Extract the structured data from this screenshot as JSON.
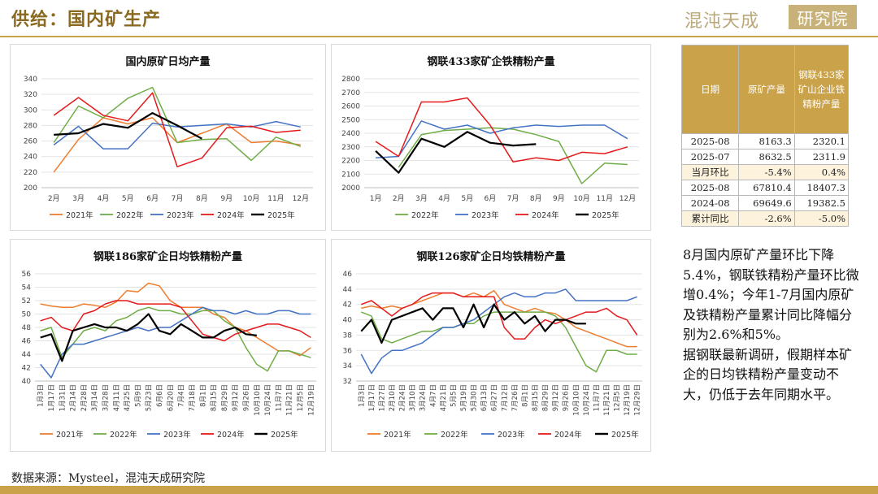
{
  "header": {
    "title": "供给：国内矿生产",
    "logo_text": "混沌天成",
    "logo_badge": "研究院"
  },
  "colors": {
    "2021": "#ed7d31",
    "2022": "#70ad47",
    "2023": "#4472c4",
    "2024": "#e41a1c",
    "2025": "#000000",
    "accent": "#c9a24a"
  },
  "legend_labels": [
    "2021年",
    "2022年",
    "2023年",
    "2024年",
    "2025年"
  ],
  "chart_data": [
    {
      "type": "line",
      "title": "国内原矿日均产量",
      "categories": [
        "2月",
        "3月",
        "4月",
        "5月",
        "6月",
        "7月",
        "8月",
        "9月",
        "10月",
        "11月",
        "12月"
      ],
      "ylim": [
        200,
        340
      ],
      "yticks": [
        200,
        220,
        240,
        260,
        280,
        300,
        320,
        340
      ],
      "series": [
        {
          "name": "2021年",
          "values": [
            220,
            262,
            290,
            282,
            290,
            258,
            270,
            282,
            258,
            260,
            255
          ]
        },
        {
          "name": "2022年",
          "values": [
            258,
            305,
            290,
            315,
            329,
            258,
            262,
            263,
            235,
            265,
            253
          ]
        },
        {
          "name": "2023年",
          "values": [
            255,
            279,
            250,
            250,
            283,
            278,
            280,
            282,
            278,
            285,
            278
          ]
        },
        {
          "name": "2024年",
          "values": [
            293,
            316,
            293,
            286,
            322,
            227,
            238,
            277,
            279,
            271,
            274
          ]
        },
        {
          "name": "2025年",
          "values": [
            268,
            270,
            282,
            277,
            296,
            280,
            263,
            null,
            null,
            null,
            null
          ]
        }
      ]
    },
    {
      "type": "line",
      "title": "钢联433家矿企铁精粉产量",
      "categories": [
        "1月",
        "2月",
        "3月",
        "4月",
        "5月",
        "6月",
        "7月",
        "8月",
        "9月",
        "10月",
        "11月",
        "12月"
      ],
      "ylim": [
        2000,
        2800
      ],
      "yticks": [
        2000,
        2100,
        2200,
        2300,
        2400,
        2500,
        2600,
        2700,
        2800
      ],
      "series": [
        {
          "name": "2022年",
          "values": [
            null,
            2150,
            2390,
            2420,
            2430,
            2440,
            2430,
            2390,
            2340,
            2030,
            2180,
            2170
          ]
        },
        {
          "name": "2023年",
          "values": [
            2220,
            2230,
            2490,
            2430,
            2460,
            2400,
            2440,
            2460,
            2450,
            2460,
            2460,
            2360
          ]
        },
        {
          "name": "2024年",
          "values": [
            2340,
            2230,
            2630,
            2630,
            2660,
            2460,
            2190,
            2220,
            2200,
            2260,
            2250,
            2300
          ]
        },
        {
          "name": "2025年",
          "values": [
            2270,
            2110,
            2360,
            2300,
            2410,
            2330,
            2310,
            2320,
            null,
            null,
            null,
            null
          ]
        }
      ]
    },
    {
      "type": "line",
      "title": "钢联186家矿企日均铁精粉产量",
      "categories": [
        "1月3日",
        "1月17日",
        "1月31日",
        "2月14日",
        "2月28日",
        "3月14日",
        "3月28日",
        "4月11日",
        "4月25日",
        "5月9日",
        "5月23日",
        "6月6日",
        "6月20日",
        "7月4日",
        "7月18日",
        "8月1日",
        "8月15日",
        "8月29日",
        "9月12日",
        "9月26日",
        "10月10日",
        "10月24日",
        "11月7日",
        "11月21日",
        "12月5日",
        "12月19日"
      ],
      "ylim": [
        40,
        56
      ],
      "yticks": [
        40,
        42,
        44,
        46,
        48,
        50,
        52,
        54,
        56
      ],
      "series": [
        {
          "name": "2021年",
          "values": [
            51.5,
            51.2,
            51.0,
            51.0,
            51.5,
            51.3,
            51.0,
            51.8,
            53.5,
            53.3,
            54.6,
            54.2,
            52.0,
            51.0,
            51.0,
            51.0,
            50.0,
            49.5,
            48.0,
            47.5,
            46.5,
            45.5,
            44.5,
            44.5,
            43.8,
            45.0
          ]
        },
        {
          "name": "2022年",
          "values": [
            47.5,
            48.0,
            43.5,
            45.5,
            47.5,
            48.0,
            47.5,
            49.0,
            49.5,
            50.5,
            51.0,
            50.5,
            50.5,
            50.0,
            50.0,
            50.5,
            50.5,
            49.0,
            48.0,
            45.0,
            42.5,
            41.5,
            44.5,
            44.5,
            44.0,
            43.5
          ]
        },
        {
          "name": "2023年",
          "values": [
            42.5,
            40.5,
            44.0,
            45.5,
            45.5,
            46.0,
            46.5,
            47.0,
            47.5,
            48.0,
            47.5,
            48.0,
            48.0,
            49.0,
            50.0,
            51.0,
            50.5,
            50.5,
            50.0,
            50.5,
            50.0,
            50.0,
            50.5,
            50.5,
            50.0,
            50.0
          ]
        },
        {
          "name": "2024年",
          "values": [
            49.0,
            49.5,
            48.0,
            47.5,
            50.0,
            50.5,
            51.5,
            52.0,
            52.0,
            51.5,
            51.5,
            51.5,
            51.5,
            51.0,
            49.0,
            47.0,
            46.5,
            46.0,
            47.0,
            47.5,
            48.0,
            48.5,
            48.5,
            48.0,
            47.5,
            46.5
          ]
        },
        {
          "name": "2025年",
          "values": [
            46.5,
            47.0,
            43.0,
            47.5,
            48.0,
            48.5,
            48.0,
            48.0,
            47.5,
            48.5,
            50.0,
            47.5,
            47.0,
            48.5,
            47.5,
            46.5,
            46.5,
            47.5,
            48.0,
            47.0,
            46.8,
            null,
            null,
            null,
            null,
            null
          ]
        }
      ]
    },
    {
      "type": "line",
      "title": "钢联126家矿企日均铁精粉产量",
      "categories": [
        "1月3日",
        "1月17日",
        "1月27日",
        "2月10日",
        "2月24日",
        "3月10日",
        "3月24日",
        "4月7日",
        "4月21日",
        "5月5日",
        "5月19日",
        "5月30日",
        "6月13日",
        "6月27日",
        "7月12日",
        "7月26日",
        "8月1日",
        "8月15日",
        "8月29日",
        "9月12日",
        "9月26日",
        "10月10日",
        "10月24日",
        "11月7日",
        "11月21日",
        "12月5日",
        "12月19日",
        "12月29日"
      ],
      "ylim": [
        32,
        46
      ],
      "yticks": [
        32,
        34,
        36,
        38,
        40,
        42,
        44,
        46
      ],
      "series": [
        {
          "name": "2021年",
          "values": [
            41.5,
            41.8,
            41.5,
            41.8,
            41.5,
            42.0,
            42.5,
            43.0,
            43.5,
            43.5,
            43.0,
            43.5,
            43.0,
            43.8,
            42.0,
            41.5,
            41.0,
            41.5,
            41.0,
            40.8,
            40.0,
            39.0,
            38.5,
            38.0,
            37.5,
            37.0,
            36.5,
            36.5
          ]
        },
        {
          "name": "2022年",
          "values": [
            41.0,
            40.5,
            37.5,
            37.0,
            37.5,
            38.0,
            38.5,
            38.5,
            39.0,
            39.0,
            39.5,
            39.5,
            40.5,
            41.0,
            41.0,
            41.0,
            41.0,
            41.0,
            41.0,
            40.5,
            39.0,
            36.5,
            34.0,
            33.2,
            36.0,
            36.0,
            35.5,
            35.5
          ]
        },
        {
          "name": "2023年",
          "values": [
            35.5,
            33.0,
            35.0,
            36.0,
            36.0,
            36.5,
            37.0,
            38.0,
            39.0,
            39.0,
            39.5,
            40.0,
            41.0,
            42.0,
            43.0,
            43.5,
            43.0,
            43.0,
            43.5,
            43.5,
            44.0,
            42.5,
            42.5,
            42.5,
            42.5,
            42.5,
            42.5,
            43.0
          ]
        },
        {
          "name": "2024年",
          "values": [
            42.0,
            42.5,
            41.5,
            40.5,
            41.5,
            42.0,
            43.0,
            43.5,
            43.5,
            43.5,
            43.0,
            43.0,
            43.0,
            43.0,
            39.0,
            37.5,
            37.5,
            39.0,
            40.0,
            39.5,
            40.0,
            40.5,
            41.0,
            41.0,
            41.5,
            40.5,
            40.0,
            38.0
          ]
        },
        {
          "name": "2025年",
          "values": [
            38.5,
            40.0,
            37.0,
            40.0,
            40.5,
            41.0,
            41.5,
            40.0,
            41.5,
            41.5,
            39.0,
            42.0,
            39.0,
            42.0,
            40.0,
            41.0,
            39.5,
            40.5,
            38.5,
            40.0,
            40.0,
            39.5,
            39.5,
            null,
            null,
            null,
            null,
            null
          ]
        }
      ]
    }
  ],
  "table": {
    "headers": [
      "日期",
      "原矿产量",
      "钢联433家矿山企业铁精粉产量"
    ],
    "rows": [
      [
        "2025-08",
        "8163.3",
        "2320.1"
      ],
      [
        "2025-07",
        "8632.5",
        "2311.9"
      ],
      [
        "当月环比",
        "-5.4%",
        "0.4%"
      ],
      [
        "2025-08",
        "67810.4",
        "18407.3"
      ],
      [
        "2024-08",
        "69649.6",
        "19382.5"
      ],
      [
        "累计同比",
        "-2.6%",
        "-5.0%"
      ]
    ]
  },
  "note": {
    "p1": "8月国内原矿产量环比下降5.4%，钢联铁精粉产量环比微增0.4%；今年1-7月国内原矿及铁精粉产量累计同比降幅分别为2.6%和5%。",
    "p2": "据钢联最新调研，假期样本矿企的日均铁精粉产量变动不大，仍低于去年同期水平。"
  },
  "source": "数据来源：Mysteel，混沌天成研究院"
}
